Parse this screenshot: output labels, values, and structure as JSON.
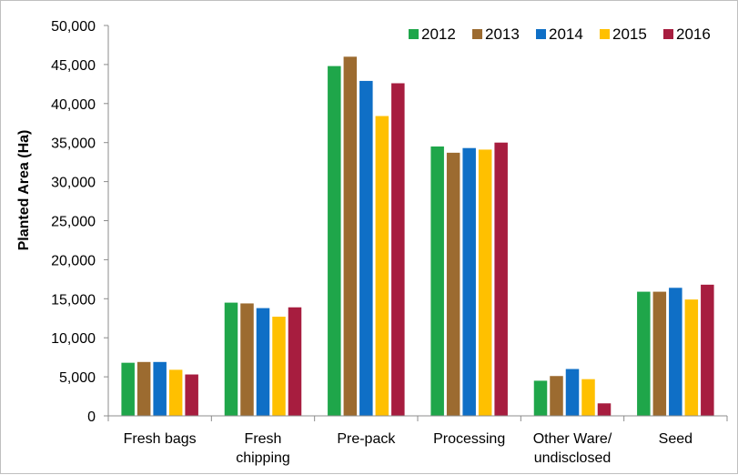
{
  "chart_data": {
    "type": "bar",
    "title": "",
    "xlabel": "",
    "ylabel": "Planted Area (Ha)",
    "ylim": [
      0,
      50000
    ],
    "yticks": [
      0,
      5000,
      10000,
      15000,
      20000,
      25000,
      30000,
      35000,
      40000,
      45000,
      50000
    ],
    "ytick_labels": [
      "0",
      "5,000",
      "10,000",
      "15,000",
      "20,000",
      "25,000",
      "30,000",
      "35,000",
      "40,000",
      "45,000",
      "50,000"
    ],
    "grid": false,
    "legend_position": "top-right",
    "categories": [
      [
        "Fresh bags"
      ],
      [
        "Fresh",
        "chipping"
      ],
      [
        "Pre-pack"
      ],
      [
        "Processing"
      ],
      [
        "Other Ware/",
        "undisclosed"
      ],
      [
        "Seed"
      ]
    ],
    "series": [
      {
        "name": "2012",
        "color": "#1fa64a",
        "values": [
          6800,
          14500,
          44800,
          34500,
          4500,
          15900
        ]
      },
      {
        "name": "2013",
        "color": "#9c6b30",
        "values": [
          6900,
          14400,
          46000,
          33700,
          5100,
          15900
        ]
      },
      {
        "name": "2014",
        "color": "#0f6fc6",
        "values": [
          6900,
          13800,
          42900,
          34300,
          6000,
          16400
        ]
      },
      {
        "name": "2015",
        "color": "#ffc000",
        "values": [
          5900,
          12700,
          38400,
          34100,
          4700,
          14900
        ]
      },
      {
        "name": "2016",
        "color": "#a71d3f",
        "values": [
          5300,
          13900,
          42600,
          35000,
          1600,
          16800
        ]
      }
    ]
  }
}
